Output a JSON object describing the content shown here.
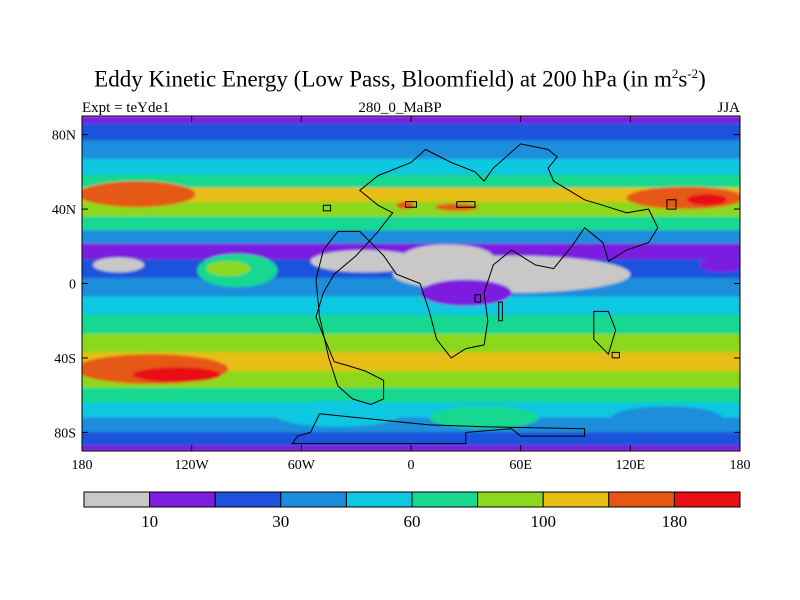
{
  "chart_data": {
    "type": "heatmap",
    "title_main": "Eddy Kinetic Energy (Low Pass, Bloomfield) at 200 hPa (in m",
    "title_sup1": "2",
    "title_mid": "s",
    "title_sup2": "-2",
    "title_end": ")",
    "subtitle_left": "Expt = teYde1",
    "subtitle_center": "280_0_MaBP",
    "subtitle_right": "JJA",
    "xlim": [
      -180,
      180
    ],
    "ylim": [
      -90,
      90
    ],
    "x_ticks": [
      {
        "value": -180,
        "label": "180"
      },
      {
        "value": -120,
        "label": "120W"
      },
      {
        "value": -60,
        "label": "60W"
      },
      {
        "value": 0,
        "label": "0"
      },
      {
        "value": 60,
        "label": "60E"
      },
      {
        "value": 120,
        "label": "120E"
      },
      {
        "value": 180,
        "label": "180"
      }
    ],
    "y_ticks": [
      {
        "value": 80,
        "label": "80N"
      },
      {
        "value": 40,
        "label": "40N"
      },
      {
        "value": 0,
        "label": "0"
      },
      {
        "value": -40,
        "label": "40S"
      },
      {
        "value": -80,
        "label": "80S"
      }
    ],
    "colorbar": {
      "colors": [
        "#c8c8c8",
        "#7b1ee0",
        "#1e52dc",
        "#1a8edc",
        "#0ec8e0",
        "#18d890",
        "#8cd81c",
        "#e6be12",
        "#e65812",
        "#e80f14"
      ],
      "labels": [
        {
          "boundary": 1,
          "label": "10"
        },
        {
          "boundary": 3,
          "label": "30"
        },
        {
          "boundary": 5,
          "label": "60"
        },
        {
          "boundary": 7,
          "label": "100"
        },
        {
          "boundary": 9,
          "label": "180"
        }
      ]
    },
    "zonal_profile": [
      {
        "lat": 90,
        "level": 2
      },
      {
        "lat": 82,
        "level": 3
      },
      {
        "lat": 72,
        "level": 4
      },
      {
        "lat": 62,
        "level": 5
      },
      {
        "lat": 55,
        "level": 6
      },
      {
        "lat": 48,
        "level": 8
      },
      {
        "lat": 40,
        "level": 7
      },
      {
        "lat": 32,
        "level": 6
      },
      {
        "lat": 25,
        "level": 4
      },
      {
        "lat": 18,
        "level": 2
      },
      {
        "lat": 8,
        "level": 3
      },
      {
        "lat": -2,
        "level": 4
      },
      {
        "lat": -12,
        "level": 5
      },
      {
        "lat": -22,
        "level": 6
      },
      {
        "lat": -32,
        "level": 7
      },
      {
        "lat": -42,
        "level": 8
      },
      {
        "lat": -52,
        "level": 7
      },
      {
        "lat": -60,
        "level": 6
      },
      {
        "lat": -68,
        "level": 5
      },
      {
        "lat": -76,
        "level": 4
      },
      {
        "lat": -84,
        "level": 3
      },
      {
        "lat": -90,
        "level": 2
      }
    ],
    "blobs": [
      {
        "lon": 55,
        "lat": 5,
        "rlon": 65,
        "rlat": 10,
        "level": 1
      },
      {
        "lon": -25,
        "lat": 12,
        "rlon": 30,
        "rlat": 6,
        "level": 1
      },
      {
        "lon": 20,
        "lat": 14,
        "rlon": 25,
        "rlat": 7,
        "level": 1
      },
      {
        "lon": 30,
        "lat": -5,
        "rlon": 25,
        "rlat": 7,
        "level": 2
      },
      {
        "lon": -160,
        "lat": 10,
        "rlon": 14,
        "rlat": 4,
        "level": 1
      },
      {
        "lon": 170,
        "lat": 10,
        "rlon": 12,
        "rlat": 4,
        "level": 2
      },
      {
        "lon": -95,
        "lat": 7,
        "rlon": 22,
        "rlat": 9,
        "level": 6
      },
      {
        "lon": -100,
        "lat": 8,
        "rlon": 12,
        "rlat": 4,
        "level": 7
      },
      {
        "lon": -150,
        "lat": 48,
        "rlon": 32,
        "rlat": 7,
        "level": 9
      },
      {
        "lon": 150,
        "lat": 46,
        "rlon": 32,
        "rlat": 6,
        "level": 9
      },
      {
        "lon": 162,
        "lat": 45,
        "rlon": 11,
        "rlat": 3,
        "level": 10
      },
      {
        "lon": 25,
        "lat": 41,
        "rlon": 12,
        "rlat": 2,
        "level": 9
      },
      {
        "lon": -3,
        "lat": 42,
        "rlon": 5,
        "rlat": 2,
        "level": 9
      },
      {
        "lon": -142,
        "lat": -46,
        "rlon": 42,
        "rlat": 8,
        "level": 9
      },
      {
        "lon": -128,
        "lat": -49,
        "rlon": 24,
        "rlat": 4,
        "level": 10
      },
      {
        "lon": 140,
        "lat": -42,
        "rlon": 12,
        "rlat": 3,
        "level": 8
      },
      {
        "lon": -40,
        "lat": -70,
        "rlon": 35,
        "rlat": 7,
        "level": 5
      },
      {
        "lon": 40,
        "lat": -72,
        "rlon": 30,
        "rlat": 6,
        "level": 6
      },
      {
        "lon": 140,
        "lat": -72,
        "rlon": 30,
        "rlat": 6,
        "level": 4
      }
    ],
    "coastlines": [
      [
        [
          -15,
          -62
        ],
        [
          -15,
          -52
        ],
        [
          -25,
          -47
        ],
        [
          -35,
          -44
        ],
        [
          -42,
          -42
        ],
        [
          -48,
          -28
        ],
        [
          -52,
          -18
        ],
        [
          -48,
          -5
        ],
        [
          -42,
          5
        ],
        [
          -30,
          15
        ],
        [
          -18,
          28
        ],
        [
          -10,
          38
        ],
        [
          -18,
          42
        ],
        [
          -28,
          50
        ],
        [
          -18,
          58
        ],
        [
          0,
          65
        ],
        [
          8,
          72
        ],
        [
          22,
          65
        ],
        [
          35,
          60
        ],
        [
          40,
          55
        ],
        [
          45,
          62
        ],
        [
          60,
          75
        ],
        [
          75,
          72
        ],
        [
          80,
          68
        ],
        [
          75,
          62
        ],
        [
          78,
          55
        ],
        [
          95,
          45
        ],
        [
          105,
          42
        ],
        [
          118,
          38
        ],
        [
          130,
          40
        ],
        [
          135,
          30
        ],
        [
          130,
          22
        ],
        [
          118,
          18
        ],
        [
          108,
          12
        ],
        [
          105,
          22
        ],
        [
          95,
          30
        ],
        [
          88,
          20
        ],
        [
          78,
          8
        ],
        [
          68,
          10
        ],
        [
          55,
          18
        ],
        [
          45,
          10
        ],
        [
          40,
          -5
        ],
        [
          42,
          -20
        ],
        [
          40,
          -33
        ],
        [
          30,
          -35
        ],
        [
          22,
          -40
        ],
        [
          14,
          -30
        ],
        [
          10,
          -15
        ],
        [
          5,
          0
        ],
        [
          -8,
          5
        ],
        [
          -15,
          15
        ],
        [
          -28,
          28
        ],
        [
          -40,
          28
        ],
        [
          -48,
          18
        ],
        [
          -52,
          2
        ],
        [
          -50,
          -18
        ],
        [
          -45,
          -40
        ],
        [
          -40,
          -55
        ],
        [
          -32,
          -62
        ],
        [
          -22,
          -65
        ],
        [
          -15,
          -62
        ]
      ],
      [
        [
          50,
          -20
        ],
        [
          50,
          -10
        ],
        [
          48,
          -10
        ],
        [
          48,
          -20
        ],
        [
          50,
          -20
        ]
      ],
      [
        [
          100,
          -30
        ],
        [
          100,
          -15
        ],
        [
          108,
          -15
        ],
        [
          112,
          -25
        ],
        [
          108,
          -38
        ],
        [
          100,
          -30
        ]
      ],
      [
        [
          -50,
          -70
        ],
        [
          -55,
          -80
        ],
        [
          -62,
          -82
        ],
        [
          -65,
          -86
        ],
        [
          30,
          -86
        ],
        [
          30,
          -80
        ],
        [
          55,
          -78
        ],
        [
          60,
          -82
        ],
        [
          95,
          -82
        ],
        [
          95,
          -78
        ],
        [
          40,
          -77
        ],
        [
          10,
          -76
        ],
        [
          -10,
          -74
        ],
        [
          -30,
          -72
        ],
        [
          -50,
          -70
        ]
      ],
      [
        [
          -3,
          44
        ],
        [
          -3,
          41
        ],
        [
          3,
          41
        ],
        [
          3,
          44
        ],
        [
          -3,
          44
        ]
      ],
      [
        [
          25,
          44
        ],
        [
          25,
          41
        ],
        [
          35,
          41
        ],
        [
          35,
          44
        ],
        [
          25,
          44
        ]
      ],
      [
        [
          140,
          45
        ],
        [
          140,
          40
        ],
        [
          145,
          40
        ],
        [
          145,
          45
        ],
        [
          140,
          45
        ]
      ],
      [
        [
          -48,
          42
        ],
        [
          -48,
          39
        ],
        [
          -44,
          39
        ],
        [
          -44,
          42
        ],
        [
          -48,
          42
        ]
      ],
      [
        [
          110,
          -40
        ],
        [
          110,
          -37
        ],
        [
          114,
          -37
        ],
        [
          114,
          -40
        ],
        [
          110,
          -40
        ]
      ],
      [
        [
          35,
          -10
        ],
        [
          35,
          -6
        ],
        [
          38,
          -6
        ],
        [
          38,
          -10
        ],
        [
          35,
          -10
        ]
      ]
    ]
  }
}
